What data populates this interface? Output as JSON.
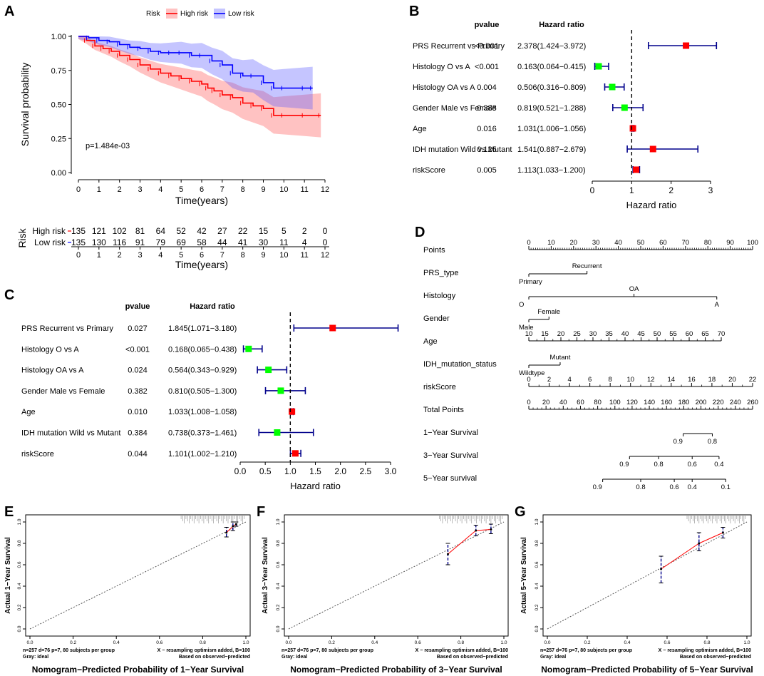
{
  "colors": {
    "high_risk": "#ff0000",
    "low_risk": "#0000ff",
    "forest_line": "#00008b",
    "hr_high": "#ff0000",
    "hr_low": "#00ff00",
    "calib_line": "#ff0000",
    "calib_err": "#00008b",
    "ideal": "#808080"
  },
  "panel_labels": {
    "a": "A",
    "b": "B",
    "c": "C",
    "d": "D",
    "e": "E",
    "f": "F",
    "g": "G"
  },
  "chart_data": [
    {
      "id": "A",
      "type": "line",
      "subtype": "kaplan-meier",
      "ylabel": "Survival probability",
      "xlabel": "Time(years)",
      "legend_title": "Risk",
      "xlim": [
        0,
        12
      ],
      "ylim": [
        0,
        1
      ],
      "x_ticks": [
        "0",
        "1",
        "2",
        "3",
        "4",
        "5",
        "6",
        "7",
        "8",
        "9",
        "10",
        "11",
        "12"
      ],
      "y_ticks": [
        "0.00",
        "0.25",
        "0.50",
        "0.75",
        "1.00"
      ],
      "pvalue_text": "p=1.484e-03",
      "series": [
        {
          "name": "High risk",
          "x": [
            0,
            0.4,
            0.8,
            1.2,
            1.6,
            2,
            2.5,
            3,
            3.5,
            4,
            4.5,
            5,
            5.5,
            6,
            6.3,
            6.6,
            7,
            7.5,
            8,
            8.5,
            9,
            9.5,
            10,
            11,
            11.8
          ],
          "y": [
            1,
            0.97,
            0.93,
            0.91,
            0.89,
            0.86,
            0.83,
            0.79,
            0.76,
            0.73,
            0.71,
            0.69,
            0.67,
            0.65,
            0.62,
            0.6,
            0.57,
            0.55,
            0.51,
            0.49,
            0.47,
            0.42,
            0.42,
            0.42,
            0.42
          ]
        },
        {
          "name": "Low risk",
          "x": [
            0,
            0.5,
            1,
            1.5,
            2,
            2.5,
            3,
            3.5,
            4,
            4.5,
            5,
            5.5,
            6,
            6.5,
            7,
            7.5,
            8,
            8.5,
            9,
            9.5,
            10,
            11,
            11.4
          ],
          "y": [
            1,
            0.99,
            0.97,
            0.96,
            0.94,
            0.92,
            0.91,
            0.89,
            0.88,
            0.88,
            0.88,
            0.86,
            0.86,
            0.82,
            0.79,
            0.73,
            0.71,
            0.71,
            0.66,
            0.62,
            0.62,
            0.62,
            0.62
          ]
        }
      ],
      "risk_table": {
        "title": "Risk",
        "rows": [
          {
            "name": "High risk",
            "values": [
              "135",
              "121",
              "102",
              "81",
              "64",
              "52",
              "42",
              "27",
              "22",
              "15",
              "5",
              "2",
              "0"
            ]
          },
          {
            "name": "Low risk",
            "values": [
              "135",
              "130",
              "116",
              "91",
              "79",
              "69",
              "58",
              "44",
              "41",
              "30",
              "11",
              "4",
              "0"
            ]
          }
        ]
      }
    },
    {
      "id": "B",
      "type": "forest",
      "col_headers": {
        "pvalue": "pvalue",
        "hr": "Hazard ratio"
      },
      "xlabel": "Hazard ratio",
      "xlim": [
        0,
        3
      ],
      "x_ticks": [
        "0",
        "1",
        "2",
        "3"
      ],
      "rows": [
        {
          "label": "PRS Recurrent vs Primary",
          "pvalue": "<0.001",
          "hr_text": "2.378(1.424−3.972)",
          "hr": 2.378,
          "lo": 1.424,
          "hi": 3.972
        },
        {
          "label": "Histology O vs A",
          "pvalue": "<0.001",
          "hr_text": "0.163(0.064−0.415)",
          "hr": 0.163,
          "lo": 0.064,
          "hi": 0.415
        },
        {
          "label": "Histology OA vs A",
          "pvalue": "0.004",
          "hr_text": "0.506(0.316−0.809)",
          "hr": 0.506,
          "lo": 0.316,
          "hi": 0.809
        },
        {
          "label": "Gender Male vs Female",
          "pvalue": "0.388",
          "hr_text": "0.819(0.521−1.288)",
          "hr": 0.819,
          "lo": 0.521,
          "hi": 1.288
        },
        {
          "label": "Age",
          "pvalue": "0.016",
          "hr_text": "1.031(1.006−1.056)",
          "hr": 1.031,
          "lo": 1.006,
          "hi": 1.056
        },
        {
          "label": "IDH mutation Wild vs Mutant",
          "pvalue": "0.125",
          "hr_text": "1.541(0.887−2.679)",
          "hr": 1.541,
          "lo": 0.887,
          "hi": 2.679
        },
        {
          "label": "riskScore",
          "pvalue": "0.005",
          "hr_text": "1.113(1.033−1.200)",
          "hr": 1.113,
          "lo": 1.033,
          "hi": 1.2
        }
      ]
    },
    {
      "id": "C",
      "type": "forest",
      "col_headers": {
        "pvalue": "pvalue",
        "hr": "Hazard ratio"
      },
      "xlabel": "Hazard ratio",
      "xlim": [
        0,
        3
      ],
      "x_ticks": [
        "0.0",
        "0.5",
        "1.0",
        "1.5",
        "2.0",
        "2.5",
        "3.0"
      ],
      "rows": [
        {
          "label": "PRS Recurrent vs Primary",
          "pvalue": "0.027",
          "hr_text": "1.845(1.071−3.180)",
          "hr": 1.845,
          "lo": 1.071,
          "hi": 3.18
        },
        {
          "label": "Histology O vs A",
          "pvalue": "<0.001",
          "hr_text": "0.168(0.065−0.438)",
          "hr": 0.168,
          "lo": 0.065,
          "hi": 0.438
        },
        {
          "label": "Histology OA vs A",
          "pvalue": "0.024",
          "hr_text": "0.564(0.343−0.929)",
          "hr": 0.564,
          "lo": 0.343,
          "hi": 0.929
        },
        {
          "label": "Gender Male vs Female",
          "pvalue": "0.382",
          "hr_text": "0.810(0.505−1.300)",
          "hr": 0.81,
          "lo": 0.505,
          "hi": 1.3
        },
        {
          "label": "Age",
          "pvalue": "0.010",
          "hr_text": "1.033(1.008−1.058)",
          "hr": 1.033,
          "lo": 1.008,
          "hi": 1.058
        },
        {
          "label": "IDH mutation Wild vs Mutant",
          "pvalue": "0.384",
          "hr_text": "0.738(0.373−1.461)",
          "hr": 0.738,
          "lo": 0.373,
          "hi": 1.461
        },
        {
          "label": "riskScore",
          "pvalue": "0.044",
          "hr_text": "1.101(1.002−1.210)",
          "hr": 1.101,
          "lo": 1.002,
          "hi": 1.21
        }
      ]
    },
    {
      "id": "D",
      "type": "nomogram",
      "rows": [
        {
          "name": "Points",
          "kind": "scale",
          "from": 0,
          "to": 100,
          "ticks": [
            "0",
            "10",
            "20",
            "30",
            "40",
            "50",
            "60",
            "70",
            "80",
            "90",
            "100"
          ],
          "minor": 10
        },
        {
          "name": "PRS_type",
          "kind": "cat",
          "from": 0,
          "to": 26,
          "labels": [
            {
              "t": "Primary",
              "v": 0,
              "pos": "below"
            },
            {
              "t": "Recurrent",
              "v": 26,
              "pos": "above"
            }
          ]
        },
        {
          "name": "Histology",
          "kind": "cat",
          "from": 0,
          "to": 84,
          "labels": [
            {
              "t": "O",
              "v": 0,
              "pos": "below"
            },
            {
              "t": "OA",
              "v": 47,
              "pos": "above"
            },
            {
              "t": "A",
              "v": 84,
              "pos": "below"
            }
          ]
        },
        {
          "name": "Gender",
          "kind": "cat",
          "from": 0,
          "to": 9,
          "labels": [
            {
              "t": "Male",
              "v": 0,
              "pos": "below"
            },
            {
              "t": "Female",
              "v": 9,
              "pos": "above"
            }
          ]
        },
        {
          "name": "Age",
          "kind": "scale",
          "from": 0,
          "to": 86,
          "ticks": [
            "10",
            "15",
            "20",
            "25",
            "30",
            "35",
            "40",
            "45",
            "50",
            "55",
            "60",
            "65",
            "70"
          ],
          "minor": 2
        },
        {
          "name": "IDH_mutation_status",
          "kind": "cat",
          "from": 0,
          "to": 14,
          "labels": [
            {
              "t": "Wildtype",
              "v": 0,
              "pos": "below"
            },
            {
              "t": "Mutant",
              "v": 14,
              "pos": "above"
            }
          ]
        },
        {
          "name": "riskScore",
          "kind": "scale",
          "from": 0,
          "to": 100,
          "ticks": [
            "0",
            "2",
            "4",
            "6",
            "8",
            "10",
            "12",
            "14",
            "16",
            "18",
            "20",
            "22"
          ],
          "minor": 2
        },
        {
          "name": "Total Points",
          "kind": "scale",
          "from": 0,
          "to": 100,
          "ticks": [
            "0",
            "20",
            "40",
            "60",
            "80",
            "100",
            "120",
            "140",
            "160",
            "180",
            "200",
            "220",
            "240",
            "260"
          ],
          "minor": 4
        },
        {
          "name": "1−Year Survival",
          "kind": "cat",
          "from": 69,
          "to": 82,
          "labels": [
            {
              "t": "0.9",
              "v": 69,
              "pos": "below"
            },
            {
              "t": "0.8",
              "v": 82,
              "pos": "below"
            }
          ]
        },
        {
          "name": "3−Year Survival",
          "kind": "cat",
          "from": 45,
          "to": 85,
          "labels": [
            {
              "t": "0.9",
              "v": 45,
              "pos": "below"
            },
            {
              "t": "0.8",
              "v": 58,
              "pos": "below"
            },
            {
              "t": "0.6",
              "v": 73,
              "pos": "below"
            },
            {
              "t": "0.4",
              "v": 85,
              "pos": "below"
            }
          ]
        },
        {
          "name": "5−Year survival",
          "kind": "cat",
          "from": 33,
          "to": 88,
          "labels": [
            {
              "t": "0.9",
              "v": 33,
              "pos": "below"
            },
            {
              "t": "0.8",
              "v": 50,
              "pos": "below"
            },
            {
              "t": "0.6",
              "v": 65,
              "pos": "below"
            },
            {
              "t": "0.4",
              "v": 73,
              "pos": "below"
            },
            {
              "t": "0.1",
              "v": 88,
              "pos": "below"
            }
          ]
        }
      ]
    },
    {
      "id": "E",
      "type": "line",
      "subtype": "calibration",
      "ylabel": "Actual 1−Year Survival",
      "xlabel": "Nomogram−Predicted Probability of 1−Year Survival",
      "xlim": [
        0,
        1
      ],
      "ylim": [
        0,
        1
      ],
      "x_ticks": [
        "0.0",
        "0.2",
        "0.4",
        "0.6",
        "0.8",
        "1.0"
      ],
      "y_ticks": [
        "0.0",
        "0.2",
        "0.4",
        "0.6",
        "0.8",
        "1.0"
      ],
      "points": [
        {
          "x": 0.91,
          "y": 0.9,
          "lo": 0.86,
          "hi": 0.95
        },
        {
          "x": 0.94,
          "y": 0.96,
          "lo": 0.92,
          "hi": 1.0
        },
        {
          "x": 0.955,
          "y": 0.98,
          "lo": 0.96,
          "hi": 1.0
        }
      ],
      "footer_left": [
        "n=257 d=76 p=7, 80 subjects per group",
        "Gray: ideal"
      ],
      "footer_right": [
        "X − resampling optimism added, B=100",
        "Based on observed−predicted"
      ]
    },
    {
      "id": "F",
      "type": "line",
      "subtype": "calibration",
      "ylabel": "Actual 3−Year Survival",
      "xlabel": "Nomogram−Predicted Probability of 3−Year Survival",
      "xlim": [
        0,
        1
      ],
      "ylim": [
        0,
        1
      ],
      "x_ticks": [
        "0.0",
        "0.2",
        "0.4",
        "0.6",
        "0.8",
        "1.0"
      ],
      "y_ticks": [
        "0.0",
        "0.2",
        "0.4",
        "0.6",
        "0.8",
        "1.0"
      ],
      "points": [
        {
          "x": 0.74,
          "y": 0.7,
          "lo": 0.6,
          "hi": 0.8
        },
        {
          "x": 0.87,
          "y": 0.92,
          "lo": 0.87,
          "hi": 0.97
        },
        {
          "x": 0.94,
          "y": 0.93,
          "lo": 0.89,
          "hi": 0.98
        }
      ],
      "footer_left": [
        "n=257 d=76 p=7, 80 subjects per group",
        "Gray: ideal"
      ],
      "footer_right": [
        "X − resampling optimism added, B=100",
        "Based on observed−predicted"
      ]
    },
    {
      "id": "G",
      "type": "line",
      "subtype": "calibration",
      "ylabel": "Actual 5−Year Survival",
      "xlabel": "Nomogram−Predicted Probability of 5−Year Survival",
      "xlim": [
        0,
        1
      ],
      "ylim": [
        0,
        1
      ],
      "x_ticks": [
        "0.0",
        "0.2",
        "0.4",
        "0.6",
        "0.8",
        "1.0"
      ],
      "y_ticks": [
        "0.0",
        "0.2",
        "0.4",
        "0.6",
        "0.8",
        "1.0"
      ],
      "points": [
        {
          "x": 0.57,
          "y": 0.56,
          "lo": 0.43,
          "hi": 0.68
        },
        {
          "x": 0.76,
          "y": 0.8,
          "lo": 0.73,
          "hi": 0.9
        },
        {
          "x": 0.88,
          "y": 0.9,
          "lo": 0.85,
          "hi": 0.95
        }
      ],
      "footer_left": [
        "n=257 d=76 p=7, 80 subjects per group",
        "Gray: ideal"
      ],
      "footer_right": [
        "X − resampling optimism added, B=100",
        "Based on observed−predicted"
      ]
    }
  ]
}
